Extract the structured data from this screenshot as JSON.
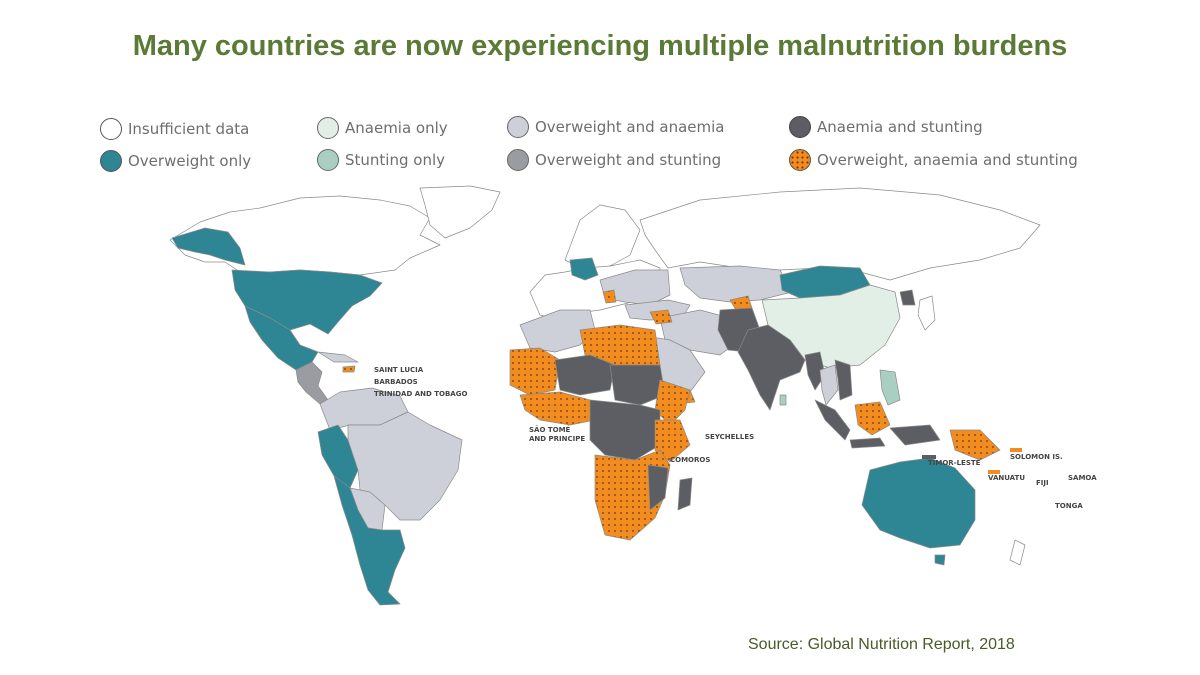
{
  "title": "Many countries are now experiencing multiple malnutrition burdens",
  "source": "Source: Global Nutrition Report, 2018",
  "legend": [
    {
      "label": "Insufficient data",
      "color": "#ffffff",
      "pattern": "none"
    },
    {
      "label": "Overweight only",
      "color": "#2e8593",
      "pattern": "none"
    },
    {
      "label": "Anaemia only",
      "color": "#e2efe6",
      "pattern": "none"
    },
    {
      "label": "Stunting only",
      "color": "#a9cfc3",
      "pattern": "none"
    },
    {
      "label": "Overweight and anaemia",
      "color": "#cdd0d8",
      "pattern": "none"
    },
    {
      "label": "Overweight and stunting",
      "color": "#9a9ca2",
      "pattern": "none"
    },
    {
      "label": "Anaemia and stunting",
      "color": "#5d5e63",
      "pattern": "none"
    },
    {
      "label": "Overweight, anaemia and stunting",
      "color": "#f28c1e",
      "pattern": "dots"
    }
  ],
  "map_labels": {
    "saint_lucia": "SAINT LUCIA",
    "barbados": "BARBADOS",
    "trinidad": "TRINIDAD AND TOBAGO",
    "sao_tome_1": "SÃO TOMÉ",
    "sao_tome_2": "AND PRINCIPE",
    "seychelles": "SEYCHELLES",
    "comoros": "COMOROS",
    "timor": "TIMOR-LESTE",
    "solomon": "SOLOMON IS.",
    "vanuatu": "VANUATU",
    "fiji": "FIJI",
    "samoa": "SAMOA",
    "tonga": "TONGA"
  }
}
